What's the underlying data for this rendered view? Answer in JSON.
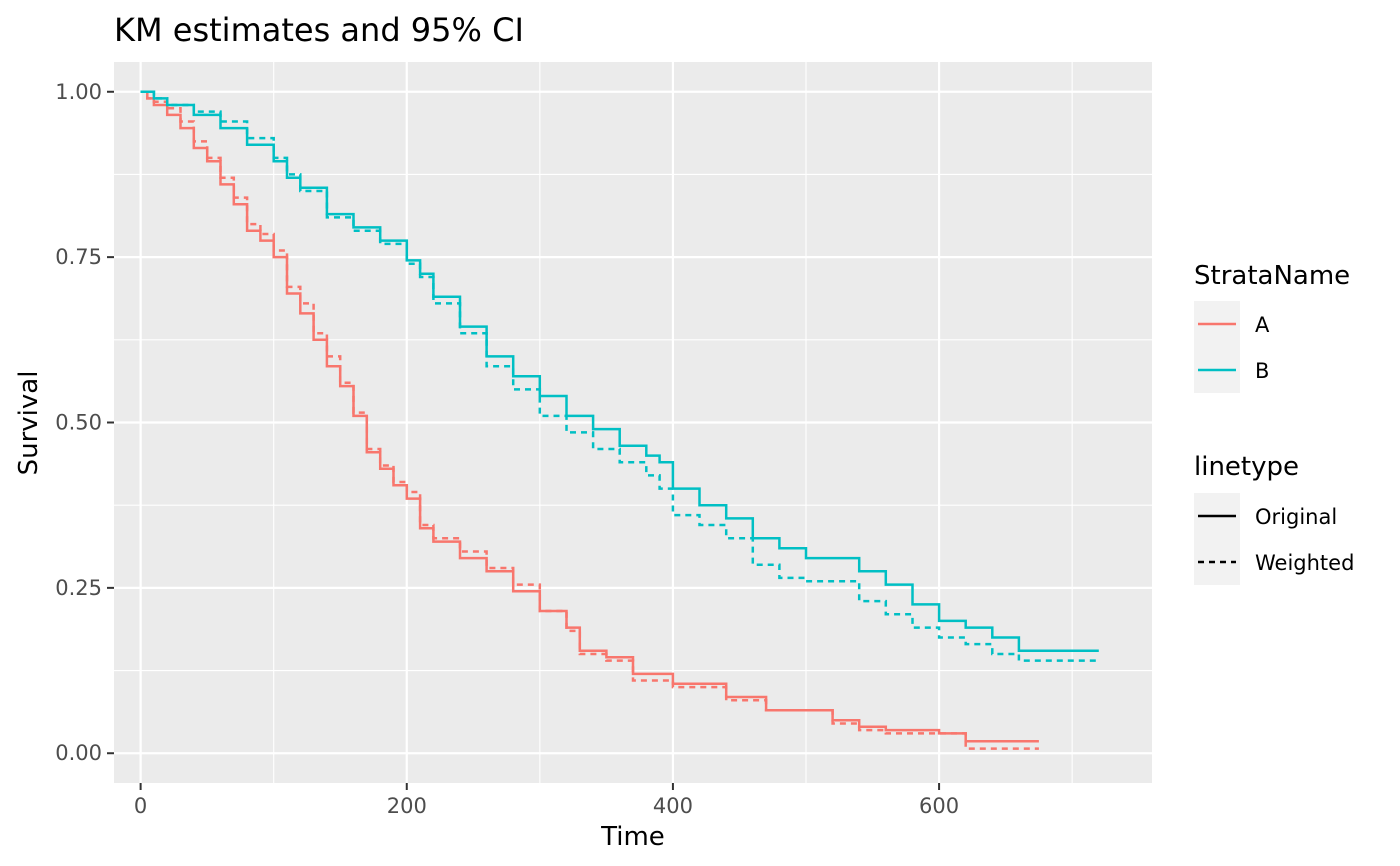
{
  "chart_data": {
    "type": "line",
    "step": true,
    "title": "KM estimates and 95% CI",
    "xlabel": "Time",
    "ylabel": "Survival",
    "xlim": [
      -20,
      760
    ],
    "ylim": [
      -0.045,
      1.045
    ],
    "x_ticks": [
      0,
      200,
      400,
      600
    ],
    "x_tick_labels": [
      "0",
      "200",
      "400",
      "600"
    ],
    "y_ticks": [
      0,
      0.25,
      0.5,
      0.75,
      1
    ],
    "y_tick_labels": [
      "0.00",
      "0.25",
      "0.50",
      "0.75",
      "1.00"
    ],
    "grid": true,
    "legend_position": "right",
    "legends": [
      {
        "title": "StrataName",
        "kind": "color",
        "entries": [
          {
            "label": "A",
            "color": "#F8766D"
          },
          {
            "label": "B",
            "color": "#00BFC4"
          }
        ]
      },
      {
        "title": "linetype",
        "kind": "linetype",
        "entries": [
          {
            "label": "Original",
            "dash": "solid"
          },
          {
            "label": "Weighted",
            "dash": "dashed"
          }
        ]
      }
    ],
    "series": [
      {
        "strata": "A",
        "linetype": "Original",
        "color": "#F8766D",
        "x": [
          0,
          5,
          10,
          20,
          30,
          40,
          50,
          60,
          70,
          80,
          90,
          100,
          110,
          120,
          130,
          140,
          150,
          160,
          170,
          180,
          190,
          200,
          210,
          220,
          240,
          260,
          280,
          300,
          320,
          330,
          350,
          370,
          400,
          440,
          470,
          500,
          520,
          540,
          560,
          600,
          620,
          675
        ],
        "y": [
          1.0,
          0.99,
          0.98,
          0.965,
          0.945,
          0.915,
          0.895,
          0.86,
          0.83,
          0.79,
          0.775,
          0.75,
          0.695,
          0.665,
          0.625,
          0.585,
          0.555,
          0.51,
          0.455,
          0.43,
          0.405,
          0.385,
          0.34,
          0.32,
          0.295,
          0.275,
          0.245,
          0.215,
          0.19,
          0.155,
          0.145,
          0.12,
          0.105,
          0.085,
          0.065,
          0.065,
          0.05,
          0.04,
          0.035,
          0.03,
          0.018,
          0.018
        ]
      },
      {
        "strata": "A",
        "linetype": "Weighted",
        "color": "#F8766D",
        "x": [
          0,
          5,
          10,
          20,
          30,
          40,
          50,
          60,
          70,
          80,
          90,
          100,
          110,
          120,
          130,
          140,
          150,
          160,
          170,
          180,
          190,
          200,
          210,
          220,
          240,
          260,
          280,
          300,
          320,
          330,
          350,
          370,
          400,
          440,
          470,
          500,
          520,
          540,
          560,
          600,
          620,
          675
        ],
        "y": [
          1.0,
          0.99,
          0.985,
          0.975,
          0.955,
          0.925,
          0.9,
          0.87,
          0.84,
          0.8,
          0.785,
          0.76,
          0.705,
          0.68,
          0.635,
          0.6,
          0.56,
          0.515,
          0.46,
          0.435,
          0.41,
          0.395,
          0.345,
          0.325,
          0.305,
          0.28,
          0.255,
          0.215,
          0.185,
          0.15,
          0.14,
          0.11,
          0.1,
          0.08,
          0.065,
          0.065,
          0.045,
          0.035,
          0.03,
          0.03,
          0.007,
          0.007
        ]
      },
      {
        "strata": "B",
        "linetype": "Original",
        "color": "#00BFC4",
        "x": [
          0,
          10,
          20,
          40,
          60,
          80,
          100,
          110,
          120,
          140,
          160,
          180,
          200,
          210,
          220,
          240,
          260,
          280,
          300,
          320,
          340,
          360,
          380,
          390,
          400,
          420,
          440,
          460,
          480,
          500,
          540,
          560,
          580,
          600,
          620,
          640,
          660,
          720
        ],
        "y": [
          1.0,
          0.99,
          0.98,
          0.965,
          0.945,
          0.92,
          0.895,
          0.87,
          0.855,
          0.815,
          0.795,
          0.775,
          0.745,
          0.725,
          0.69,
          0.645,
          0.6,
          0.57,
          0.54,
          0.51,
          0.49,
          0.465,
          0.45,
          0.44,
          0.4,
          0.375,
          0.355,
          0.325,
          0.31,
          0.295,
          0.275,
          0.255,
          0.225,
          0.2,
          0.19,
          0.175,
          0.155,
          0.155
        ]
      },
      {
        "strata": "B",
        "linetype": "Weighted",
        "color": "#00BFC4",
        "x": [
          0,
          10,
          20,
          40,
          60,
          80,
          100,
          110,
          120,
          140,
          160,
          180,
          200,
          210,
          220,
          240,
          260,
          280,
          300,
          320,
          340,
          360,
          380,
          390,
          400,
          420,
          440,
          460,
          480,
          500,
          540,
          560,
          580,
          600,
          620,
          640,
          660,
          720
        ],
        "y": [
          1.0,
          0.99,
          0.98,
          0.97,
          0.955,
          0.93,
          0.9,
          0.875,
          0.85,
          0.81,
          0.79,
          0.77,
          0.74,
          0.72,
          0.68,
          0.635,
          0.585,
          0.55,
          0.51,
          0.485,
          0.46,
          0.44,
          0.42,
          0.4,
          0.36,
          0.345,
          0.325,
          0.285,
          0.265,
          0.26,
          0.23,
          0.21,
          0.19,
          0.175,
          0.165,
          0.15,
          0.14,
          0.14
        ]
      }
    ]
  }
}
